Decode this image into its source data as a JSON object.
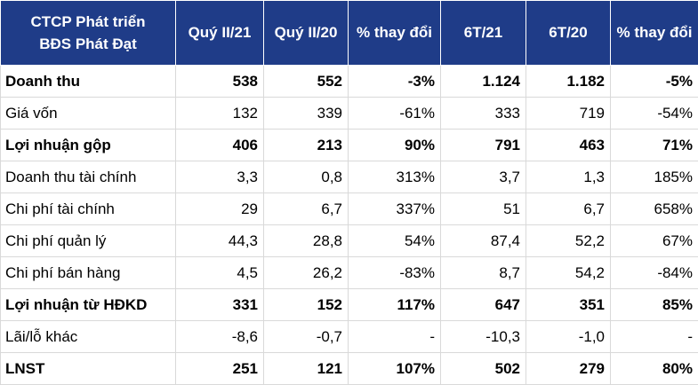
{
  "header": {
    "company_line1": "CTCP Phát triển",
    "company_line2": "BĐS Phát Đạt",
    "cols": [
      "Quý II/21",
      "Quý II/20",
      "% thay đổi",
      "6T/21",
      "6T/20",
      "% thay đổi"
    ]
  },
  "rows": [
    {
      "label": "Doanh thu",
      "bold": true,
      "values": [
        "538",
        "552",
        "-3%",
        "1.124",
        "1.182",
        "-5%"
      ]
    },
    {
      "label": "Giá vốn",
      "bold": false,
      "values": [
        "132",
        "339",
        "-61%",
        "333",
        "719",
        "-54%"
      ]
    },
    {
      "label": "Lợi nhuận gộp",
      "bold": true,
      "values": [
        "406",
        "213",
        "90%",
        "791",
        "463",
        "71%"
      ]
    },
    {
      "label": "Doanh thu tài chính",
      "bold": false,
      "values": [
        "3,3",
        "0,8",
        "313%",
        "3,7",
        "1,3",
        "185%"
      ]
    },
    {
      "label": "Chi phí tài chính",
      "bold": false,
      "values": [
        "29",
        "6,7",
        "337%",
        "51",
        "6,7",
        "658%"
      ]
    },
    {
      "label": "Chi phí quản lý",
      "bold": false,
      "values": [
        "44,3",
        "28,8",
        "54%",
        "87,4",
        "52,2",
        "67%"
      ]
    },
    {
      "label": "Chi phí bán hàng",
      "bold": false,
      "values": [
        "4,5",
        "26,2",
        "-83%",
        "8,7",
        "54,2",
        "-84%"
      ]
    },
    {
      "label": "Lợi nhuận từ HĐKD",
      "bold": true,
      "values": [
        "331",
        "152",
        "117%",
        "647",
        "351",
        "85%"
      ]
    },
    {
      "label": "Lãi/lỗ khác",
      "bold": false,
      "values": [
        "-8,6",
        "-0,7",
        "-",
        "-10,3",
        "-1,0",
        "-"
      ]
    },
    {
      "label": "LNST",
      "bold": true,
      "values": [
        "251",
        "121",
        "107%",
        "502",
        "279",
        "80%"
      ]
    }
  ],
  "colors": {
    "header_bg": "#1f3c88",
    "header_text": "#ffffff",
    "grid": "#d9d9d9"
  }
}
